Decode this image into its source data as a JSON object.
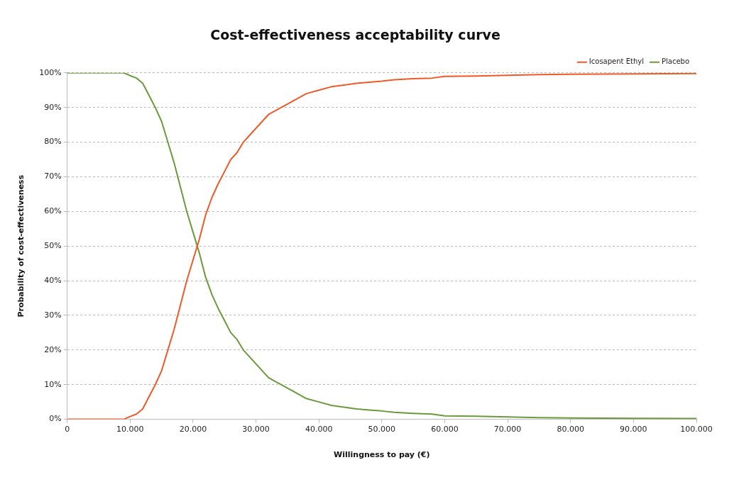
{
  "chart_data": {
    "type": "line",
    "title": "Cost-effectiveness acceptability curve",
    "xlabel": "Willingness to pay (€)",
    "ylabel": "Probability of cost-effectiveness",
    "x": [
      0,
      9000,
      10000,
      11000,
      12000,
      13000,
      14000,
      15000,
      16000,
      17000,
      18000,
      19000,
      20000,
      21000,
      22000,
      23000,
      24000,
      25000,
      26000,
      27000,
      28000,
      29000,
      30000,
      31000,
      32000,
      33000,
      34000,
      35000,
      36000,
      37000,
      38000,
      40000,
      42000,
      44000,
      46000,
      48000,
      50000,
      52000,
      55000,
      58000,
      60000,
      65000,
      70000,
      75000,
      80000,
      90000,
      100000
    ],
    "series": [
      {
        "name": "Icosapent Ethyl",
        "color": "#f05a28",
        "values": [
          0,
          0,
          0.8,
          1.5,
          3,
          6.5,
          10,
          14,
          20,
          26,
          33,
          40,
          46,
          52,
          59,
          64,
          68,
          71.5,
          75,
          77,
          80,
          82,
          84,
          86,
          88,
          89,
          90,
          91,
          92,
          93,
          94,
          95,
          96,
          96.5,
          97,
          97.3,
          97.6,
          98,
          98.3,
          98.5,
          99,
          99.1,
          99.3,
          99.5,
          99.6,
          99.7,
          99.8
        ]
      },
      {
        "name": "Placebo",
        "color": "#6a9a3a",
        "values": [
          100,
          100,
          99.2,
          98.5,
          97,
          93.5,
          90,
          86,
          80,
          74,
          67,
          60,
          54,
          48,
          41,
          36,
          32,
          28.5,
          25,
          23,
          20,
          18,
          16,
          14,
          12,
          11,
          10,
          9,
          8,
          7,
          6,
          5,
          4,
          3.5,
          3,
          2.7,
          2.4,
          2,
          1.7,
          1.5,
          1,
          0.9,
          0.7,
          0.5,
          0.4,
          0.3,
          0.2
        ]
      }
    ],
    "xlim": [
      0,
      100000
    ],
    "xticks": [
      0,
      {
        "value": 10000,
        "label": "10.000"
      },
      {
        "value": 20000,
        "label": "20.000"
      },
      {
        "value": 30000,
        "label": "30.000"
      },
      {
        "value": 40000,
        "label": "40.000"
      },
      {
        "value": 50000,
        "label": "50.000"
      },
      {
        "value": 60000,
        "label": "60.000"
      },
      {
        "value": 70000,
        "label": "70.000"
      },
      {
        "value": 80000,
        "label": "80.000"
      },
      {
        "value": 90000,
        "label": "90.000"
      },
      {
        "value": 100000,
        "label": "100.000"
      }
    ],
    "ylim": [
      0,
      100
    ],
    "yticks": [
      {
        "value": 0,
        "label": "0%"
      },
      {
        "value": 10,
        "label": "10%"
      },
      {
        "value": 20,
        "label": "20%"
      },
      {
        "value": 30,
        "label": "30%"
      },
      {
        "value": 40,
        "label": "40%"
      },
      {
        "value": 50,
        "label": "50%"
      },
      {
        "value": 60,
        "label": "60%"
      },
      {
        "value": 70,
        "label": "70%"
      },
      {
        "value": 80,
        "label": "80%"
      },
      {
        "value": 90,
        "label": "90%"
      },
      {
        "value": 100,
        "label": "100%"
      }
    ],
    "grid": "y",
    "legend": "top right",
    "marker": "none",
    "line_style": "solid"
  }
}
